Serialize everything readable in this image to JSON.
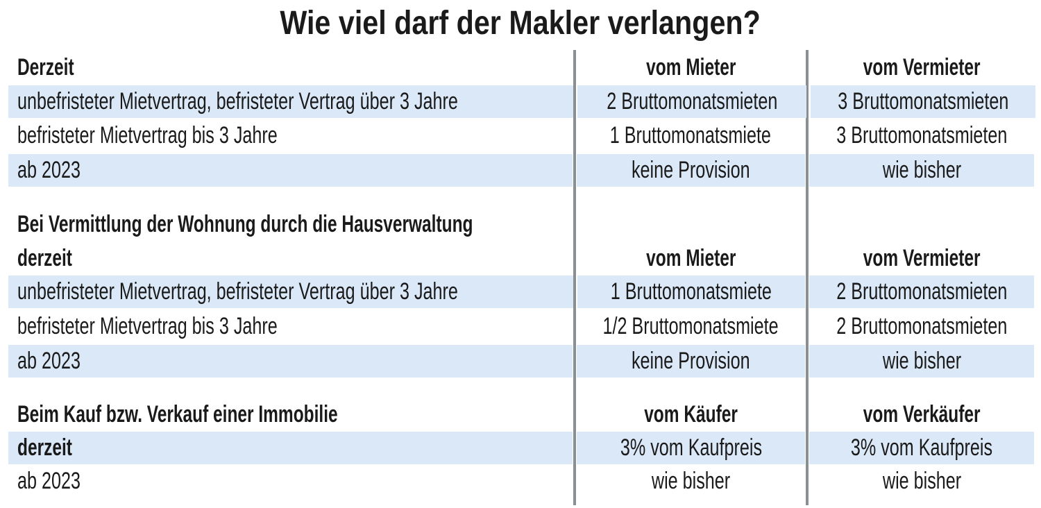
{
  "title": "Wie viel darf der Makler verlangen?",
  "colors": {
    "band": "#dbe8f7",
    "divider": "#8a8f94",
    "text": "#1a1a1a"
  },
  "sections": [
    {
      "header": [
        "Derzeit",
        "vom Mieter",
        "vom Vermieter"
      ],
      "rows": [
        [
          "unbefristeter Mietvertrag, befristeter Vertrag über 3 Jahre",
          "2 Bruttomonatsmieten",
          "3 Bruttomonatsmieten"
        ],
        [
          "befristeter Mietvertrag bis 3 Jahre",
          "1 Bruttomonatsmiete",
          "3 Bruttomonatsmieten"
        ],
        [
          "ab 2023",
          "keine Provision",
          "wie bisher"
        ]
      ]
    },
    {
      "title": "Bei Vermittlung der Wohnung durch die Hausverwaltung",
      "header": [
        "derzeit",
        "vom Mieter",
        "vom Vermieter"
      ],
      "rows": [
        [
          "unbefristeter Mietvertrag, befristeter Vertrag über 3 Jahre",
          "1 Bruttomonatsmiete",
          "2 Bruttomonatsmieten"
        ],
        [
          "befristeter Mietvertrag bis 3 Jahre",
          "1/2 Bruttomonatsmiete",
          "2 Bruttomonatsmieten"
        ],
        [
          "ab 2023",
          "keine Provision",
          "wie bisher"
        ]
      ]
    },
    {
      "header": [
        "Beim Kauf bzw. Verkauf einer Immobilie",
        "vom Käufer",
        "vom Verkäufer"
      ],
      "rows": [
        [
          "derzeit",
          "3% vom Kaufpreis",
          "3% vom Kaufpreis"
        ],
        [
          "ab 2023",
          "wie bisher",
          "wie bisher"
        ]
      ]
    }
  ]
}
